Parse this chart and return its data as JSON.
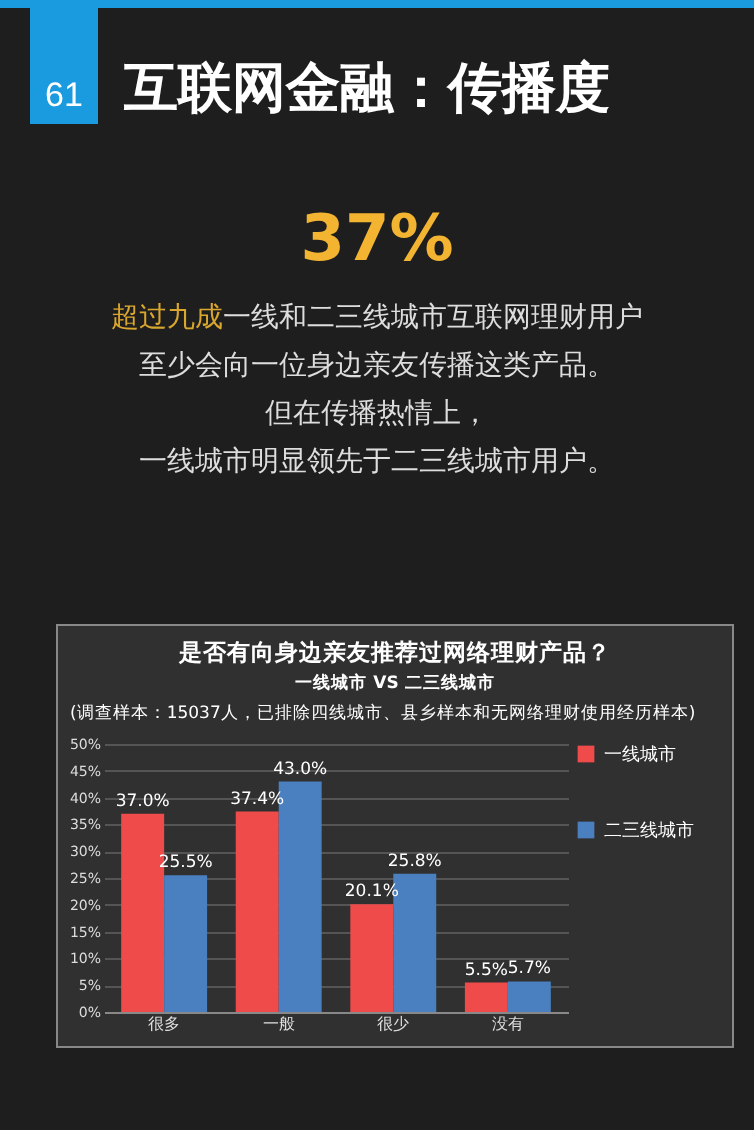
{
  "chart_data": {
    "type": "bar",
    "title": "互联网金融：传播度",
    "subtitle": "是否有向身边亲友推荐过网络理财产品？",
    "annotations": [
      "61",
      "37%",
      "超过九成",
      "一线和二三线城市互联网理财用户",
      "至少会向一位身边亲友传播这类产品。",
      "但在传播热情上，",
      "一线城市明显领先于二三线城市用户。",
      "一线城市 VS 二三线城市",
      "(调查样本：15037人，已排除四线城市、县乡样本和无网络理财使用经历样本)"
    ],
    "categories": [
      "很多",
      "一般",
      "很少",
      "没有"
    ],
    "series": [
      {
        "name": "一线城市",
        "color": "#f04b4b",
        "values": [
          37.0,
          37.4,
          20.1,
          5.5
        ],
        "value_labels": [
          "37.0%",
          "37.4%",
          "20.1%",
          "5.5%"
        ]
      },
      {
        "name": "二三线城市",
        "color": "#4a7fc0",
        "values": [
          25.5,
          43.0,
          25.8,
          5.7
        ],
        "value_labels": [
          "25.5%",
          "43.0%",
          "25.8%",
          "5.7%"
        ]
      }
    ],
    "ylim": [
      0,
      50
    ],
    "yticks": [
      {
        "value": 0,
        "label": "0%"
      },
      {
        "value": 5,
        "label": "5%"
      },
      {
        "value": 10,
        "label": "10%"
      },
      {
        "value": 15,
        "label": "15%"
      },
      {
        "value": 20,
        "label": "20%"
      },
      {
        "value": 25,
        "label": "25%"
      },
      {
        "value": 30,
        "label": "30%"
      },
      {
        "value": 35,
        "label": "35%"
      },
      {
        "value": 40,
        "label": "40%"
      },
      {
        "value": 45,
        "label": "45%"
      },
      {
        "value": 50,
        "label": "50%"
      }
    ],
    "grid": "y",
    "legend": "right"
  }
}
